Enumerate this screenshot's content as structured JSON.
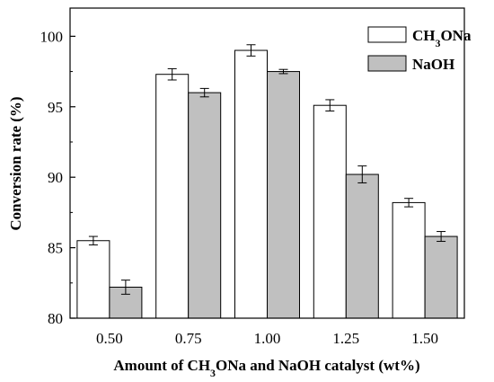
{
  "chart_data": {
    "type": "bar",
    "title": "",
    "xlabel": "Amount of CH3ONa and NaOH catalyst (wt%)",
    "ylabel": "Conversion rate (%)",
    "categories": [
      "0.50",
      "0.75",
      "1.00",
      "1.25",
      "1.50"
    ],
    "ylim": [
      80,
      102
    ],
    "yticks": [
      80,
      85,
      90,
      95,
      100
    ],
    "grid": false,
    "legend_position": "top-right",
    "series": [
      {
        "name": "CH3ONa",
        "values": [
          85.5,
          97.3,
          99.0,
          95.1,
          88.2
        ],
        "errors": [
          0.3,
          0.4,
          0.4,
          0.4,
          0.3
        ],
        "color": "#ffffff"
      },
      {
        "name": "NaOH",
        "values": [
          82.2,
          96.0,
          97.5,
          90.2,
          85.8
        ],
        "errors": [
          0.5,
          0.3,
          0.15,
          0.6,
          0.35
        ],
        "color": "#c0c0c0"
      }
    ]
  }
}
